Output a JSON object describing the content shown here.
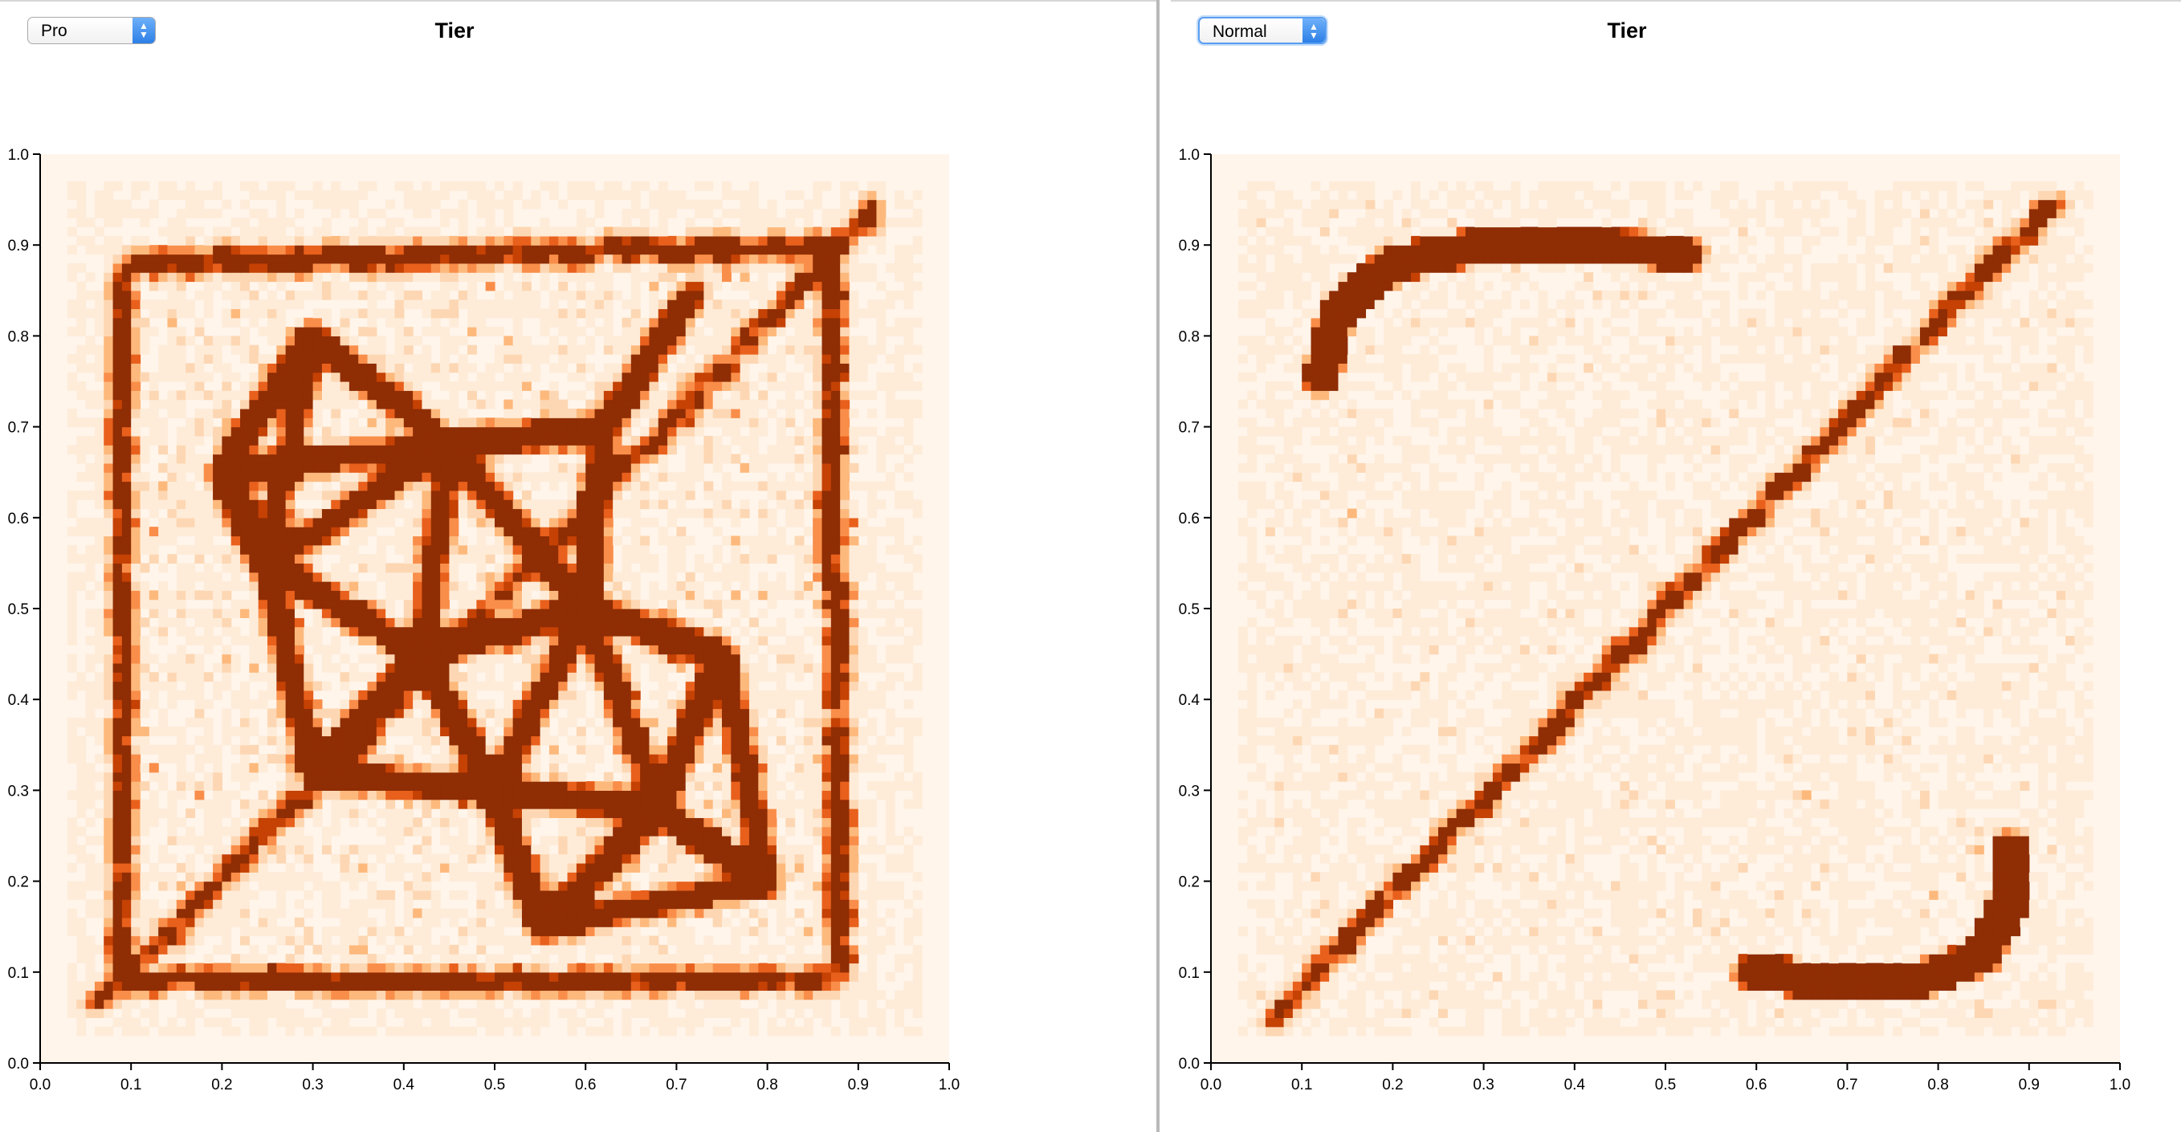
{
  "left_panel": {
    "dropdown": {
      "selected": "Pro"
    },
    "title": "Tier"
  },
  "right_panel": {
    "dropdown": {
      "selected": "Normal"
    },
    "title": "Tier"
  },
  "icons": {
    "dropdown_arrows": "chevron-up-down-icon"
  },
  "colors": {
    "scale": [
      "#fff5eb",
      "#feecd9",
      "#fdd7b3",
      "#fdb97c",
      "#f98e4a",
      "#e8601c",
      "#c54104",
      "#8f2d04"
    ],
    "divider": "#b9b9b9",
    "select_focus": "#5a9ef0"
  },
  "chart_data": [
    {
      "type": "heatmap",
      "title": "Tier",
      "subset": "Pro",
      "xlim": [
        0,
        1
      ],
      "ylim": [
        0,
        1
      ],
      "x_ticks": [
        "0.0",
        "0.1",
        "0.2",
        "0.3",
        "0.4",
        "0.5",
        "0.6",
        "0.7",
        "0.8",
        "0.9",
        "1.0"
      ],
      "y_ticks": [
        "0.0",
        "0.1",
        "0.2",
        "0.3",
        "0.4",
        "0.5",
        "0.6",
        "0.7",
        "0.8",
        "0.9",
        "1.0"
      ],
      "grid": false,
      "bins": 100,
      "density_scale": "sequential orange",
      "hotspots": [
        {
          "path": "square-frame",
          "x0": 0.09,
          "y0": 0.09,
          "x1": 0.88,
          "y1": 0.88,
          "weight": 0.9
        },
        {
          "path": "diagonal",
          "x0": 0.06,
          "y0": 0.06,
          "x1": 0.91,
          "y1": 0.94,
          "weight": 1.0
        },
        {
          "path": "network-mesh",
          "x0": 0.15,
          "y0": 0.2,
          "x1": 0.8,
          "y1": 0.85,
          "weight": 0.75
        }
      ]
    },
    {
      "type": "heatmap",
      "title": "Tier",
      "subset": "Normal",
      "xlim": [
        0,
        1
      ],
      "ylim": [
        0,
        1
      ],
      "x_ticks": [
        "0.0",
        "0.1",
        "0.2",
        "0.3",
        "0.4",
        "0.5",
        "0.6",
        "0.7",
        "0.8",
        "0.9",
        "1.0"
      ],
      "y_ticks": [
        "0.0",
        "0.1",
        "0.2",
        "0.3",
        "0.4",
        "0.5",
        "0.6",
        "0.7",
        "0.8",
        "0.9",
        "1.0"
      ],
      "grid": false,
      "bins": 100,
      "density_scale": "sequential orange",
      "hotspots": [
        {
          "path": "diagonal",
          "x0": 0.07,
          "y0": 0.05,
          "x1": 0.92,
          "y1": 0.94,
          "weight": 1.0
        },
        {
          "path": "top-left-arc",
          "x0": 0.11,
          "y0": 0.75,
          "x1": 0.53,
          "y1": 0.89,
          "weight": 0.8
        },
        {
          "path": "bottom-right-arc",
          "x0": 0.59,
          "y0": 0.1,
          "x1": 0.89,
          "y1": 0.24,
          "weight": 0.8
        }
      ]
    }
  ]
}
